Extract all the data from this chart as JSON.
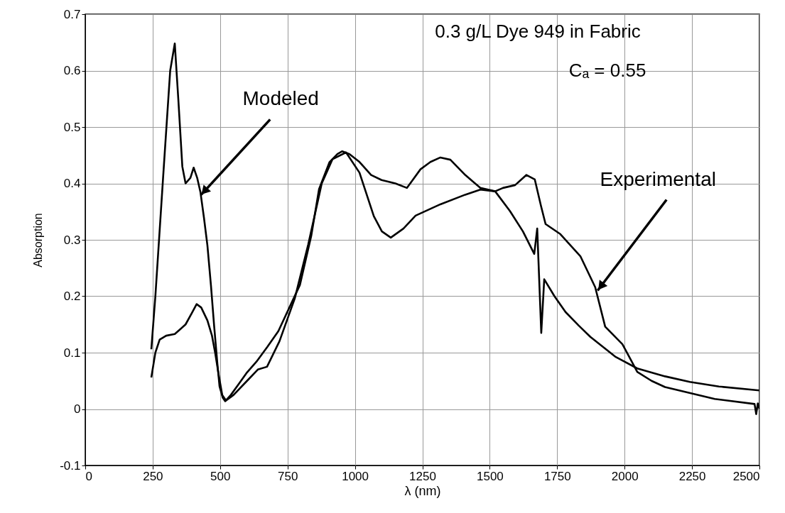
{
  "chart_data": {
    "type": "line",
    "xlabel": "λ (nm)",
    "ylabel": "Absorption",
    "annotations": [
      "0.3 g/L Dye 949 in Fabric",
      "Cₐ = 0.55",
      {
        "text": "Modeled",
        "x": 430,
        "y": 0.38
      },
      {
        "text": "Experimental",
        "x": 1900,
        "y": 0.21
      }
    ],
    "xlim": [
      0,
      2500
    ],
    "xticks": [
      0,
      250,
      500,
      750,
      1000,
      1250,
      1500,
      1750,
      2000,
      2250,
      2500
    ],
    "ylim": [
      -0.1,
      0.7
    ],
    "yticks": [
      -0.1,
      0,
      0.1,
      0.2,
      0.3,
      0.4,
      0.5,
      0.6,
      0.7
    ],
    "grid": true,
    "line_style": "solid",
    "series": [
      {
        "color": "#000000",
        "x": [
          245,
          260,
          290,
          315,
          332,
          345,
          360,
          372,
          390,
          402,
          415,
          427,
          440,
          453,
          466,
          478,
          490,
          498,
          510,
          519,
          540,
          570,
          600,
          635,
          675,
          716,
          757,
          796,
          838,
          867,
          906,
          935,
          953,
          980,
          1017,
          1060,
          1099,
          1150,
          1193,
          1243,
          1280,
          1317,
          1354,
          1409,
          1465,
          1520,
          1575,
          1623,
          1665,
          1676,
          1691,
          1702,
          1740,
          1781,
          1830,
          1873,
          1965,
          2047,
          2150,
          2242,
          2350,
          2500
        ],
        "values": [
          0.106,
          0.2,
          0.42,
          0.6,
          0.648,
          0.55,
          0.43,
          0.4,
          0.41,
          0.428,
          0.41,
          0.385,
          0.34,
          0.29,
          0.22,
          0.147,
          0.08,
          0.04,
          0.02,
          0.014,
          0.025,
          0.045,
          0.065,
          0.084,
          0.11,
          0.138,
          0.18,
          0.22,
          0.307,
          0.39,
          0.438,
          0.452,
          0.457,
          0.452,
          0.438,
          0.415,
          0.406,
          0.4,
          0.392,
          0.425,
          0.438,
          0.446,
          0.442,
          0.415,
          0.392,
          0.386,
          0.351,
          0.315,
          0.275,
          0.32,
          0.135,
          0.23,
          0.2,
          0.172,
          0.148,
          0.128,
          0.093,
          0.072,
          0.058,
          0.048,
          0.04,
          0.033
        ]
      },
      {
        "color": "#000000",
        "x": [
          245,
          260,
          276,
          300,
          332,
          372,
          395,
          413,
          430,
          453,
          470,
          482,
          495,
          508,
          522,
          550,
          600,
          640,
          674,
          720,
          777,
          827,
          877,
          917,
          967,
          1017,
          1070,
          1100,
          1133,
          1180,
          1225,
          1317,
          1409,
          1465,
          1520,
          1549,
          1594,
          1636,
          1667,
          1690,
          1707,
          1762,
          1836,
          1891,
          1928,
          1992,
          2047,
          2100,
          2150,
          2334,
          2482,
          2488,
          2494,
          2500
        ],
        "values": [
          0.056,
          0.1,
          0.123,
          0.13,
          0.133,
          0.15,
          0.17,
          0.186,
          0.18,
          0.157,
          0.13,
          0.099,
          0.06,
          0.025,
          0.015,
          0.025,
          0.05,
          0.07,
          0.075,
          0.12,
          0.196,
          0.292,
          0.4,
          0.443,
          0.455,
          0.419,
          0.342,
          0.315,
          0.304,
          0.32,
          0.343,
          0.363,
          0.38,
          0.389,
          0.386,
          0.392,
          0.397,
          0.415,
          0.407,
          0.36,
          0.328,
          0.31,
          0.271,
          0.216,
          0.146,
          0.115,
          0.066,
          0.05,
          0.039,
          0.018,
          0.009,
          -0.009,
          0.01,
          0.0
        ]
      }
    ]
  }
}
